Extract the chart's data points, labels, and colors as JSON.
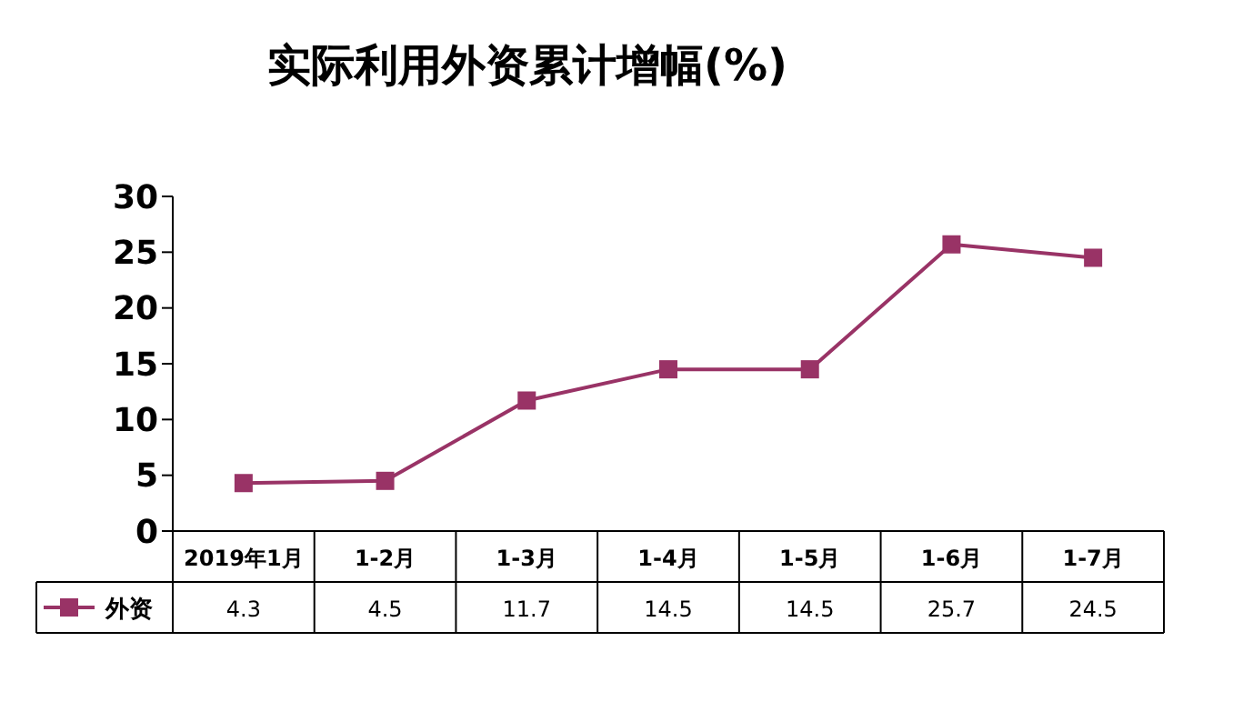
{
  "chart_data": {
    "type": "line",
    "title": "实际利用外资累计增幅(%)",
    "categories": [
      "2019年1月",
      "1-2月",
      "1-3月",
      "1-4月",
      "1-5月",
      "1-6月",
      "1-7月"
    ],
    "series": [
      {
        "name": "外资",
        "color": "#993366",
        "values": [
          4.3,
          4.5,
          11.7,
          14.5,
          14.5,
          25.7,
          24.5
        ]
      }
    ],
    "ylim": [
      0,
      30
    ],
    "yticks": [
      0,
      5,
      10,
      15,
      20,
      25,
      30
    ],
    "legend": "bottom left",
    "marker": "square",
    "line_style": "solid",
    "data_labels": true
  }
}
